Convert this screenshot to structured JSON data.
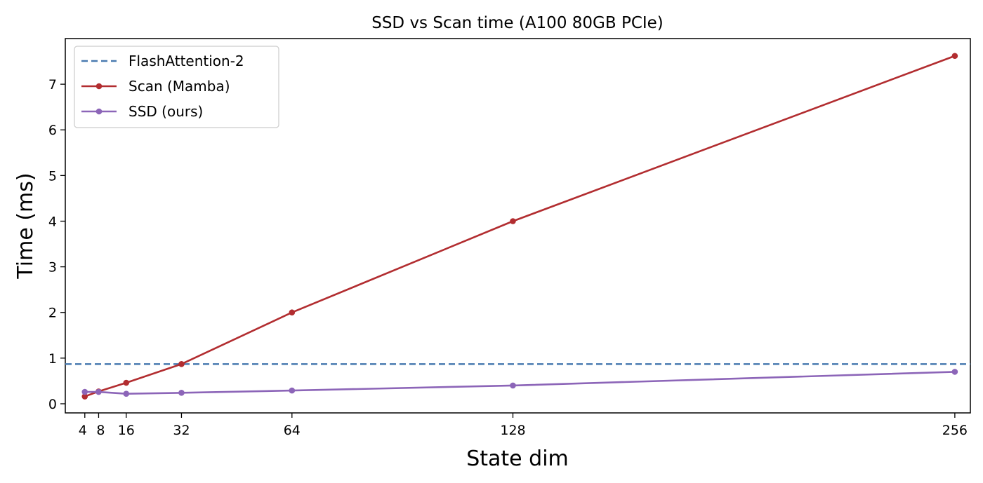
{
  "chart_data": {
    "type": "line",
    "title": "SSD vs Scan time (A100 80GB PCIe)",
    "xlabel": "State dim",
    "ylabel": "Time (ms)",
    "xlim": [
      -1.65,
      260.5
    ],
    "ylim": [
      -0.2,
      8.0
    ],
    "x_ticks": [
      4,
      8,
      16,
      32,
      64,
      128,
      256
    ],
    "y_ticks": [
      0,
      1,
      2,
      3,
      4,
      5,
      6,
      7
    ],
    "grid": false,
    "legend_position": "top-left",
    "reference_lines": [
      {
        "name": "FlashAttention-2",
        "y": 0.87,
        "color": "#4a7bb0",
        "style": "dashed"
      }
    ],
    "series": [
      {
        "name": "Scan (Mamba)",
        "color": "#b22d30",
        "marker": "circle",
        "x": [
          4,
          8,
          16,
          32,
          64,
          128,
          256
        ],
        "y": [
          0.16,
          0.27,
          0.46,
          0.87,
          2.0,
          4.0,
          7.62
        ]
      },
      {
        "name": "SSD (ours)",
        "color": "#8c65b8",
        "marker": "circle",
        "x": [
          4,
          8,
          16,
          32,
          64,
          128,
          256
        ],
        "y": [
          0.26,
          0.26,
          0.22,
          0.24,
          0.29,
          0.4,
          0.7
        ]
      }
    ]
  }
}
